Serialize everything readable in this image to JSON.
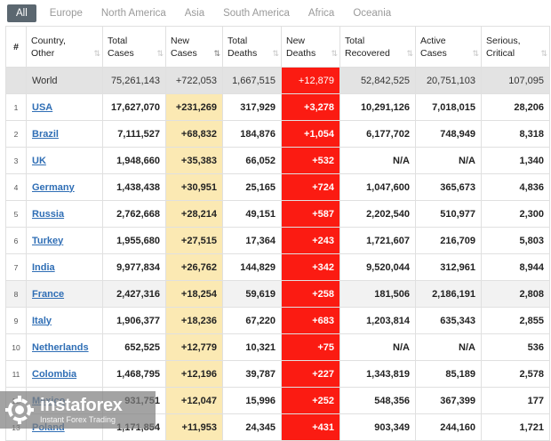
{
  "tabs": [
    {
      "label": "All",
      "active": true
    },
    {
      "label": "Europe"
    },
    {
      "label": "North America"
    },
    {
      "label": "Asia"
    },
    {
      "label": "South America"
    },
    {
      "label": "Africa"
    },
    {
      "label": "Oceania"
    }
  ],
  "columns": [
    {
      "l1": "#",
      "l2": ""
    },
    {
      "l1": "Country,",
      "l2": "Other"
    },
    {
      "l1": "Total",
      "l2": "Cases"
    },
    {
      "l1": "New",
      "l2": "Cases"
    },
    {
      "l1": "Total",
      "l2": "Deaths"
    },
    {
      "l1": "New",
      "l2": "Deaths"
    },
    {
      "l1": "Total",
      "l2": "Recovered"
    },
    {
      "l1": "Active",
      "l2": "Cases"
    },
    {
      "l1": "Serious,",
      "l2": "Critical"
    }
  ],
  "sort_icon": "⇅",
  "world": {
    "country": "World",
    "total_cases": "75,261,143",
    "new_cases": "+722,053",
    "total_deaths": "1,667,515",
    "new_deaths": "+12,879",
    "total_recovered": "52,842,525",
    "active_cases": "20,751,103",
    "serious_critical": "107,095"
  },
  "rows": [
    {
      "num": "1",
      "country": "USA",
      "total_cases": "17,627,070",
      "new_cases": "+231,269",
      "total_deaths": "317,929",
      "new_deaths": "+3,278",
      "total_recovered": "10,291,126",
      "active_cases": "7,018,015",
      "serious_critical": "28,206"
    },
    {
      "num": "2",
      "country": "Brazil",
      "total_cases": "7,111,527",
      "new_cases": "+68,832",
      "total_deaths": "184,876",
      "new_deaths": "+1,054",
      "total_recovered": "6,177,702",
      "active_cases": "748,949",
      "serious_critical": "8,318"
    },
    {
      "num": "3",
      "country": "UK",
      "total_cases": "1,948,660",
      "new_cases": "+35,383",
      "total_deaths": "66,052",
      "new_deaths": "+532",
      "total_recovered": "N/A",
      "active_cases": "N/A",
      "serious_critical": "1,340"
    },
    {
      "num": "4",
      "country": "Germany",
      "total_cases": "1,438,438",
      "new_cases": "+30,951",
      "total_deaths": "25,165",
      "new_deaths": "+724",
      "total_recovered": "1,047,600",
      "active_cases": "365,673",
      "serious_critical": "4,836"
    },
    {
      "num": "5",
      "country": "Russia",
      "total_cases": "2,762,668",
      "new_cases": "+28,214",
      "total_deaths": "49,151",
      "new_deaths": "+587",
      "total_recovered": "2,202,540",
      "active_cases": "510,977",
      "serious_critical": "2,300"
    },
    {
      "num": "6",
      "country": "Turkey",
      "total_cases": "1,955,680",
      "new_cases": "+27,515",
      "total_deaths": "17,364",
      "new_deaths": "+243",
      "total_recovered": "1,721,607",
      "active_cases": "216,709",
      "serious_critical": "5,803"
    },
    {
      "num": "7",
      "country": "India",
      "total_cases": "9,977,834",
      "new_cases": "+26,762",
      "total_deaths": "144,829",
      "new_deaths": "+342",
      "total_recovered": "9,520,044",
      "active_cases": "312,961",
      "serious_critical": "8,944"
    },
    {
      "num": "8",
      "country": "France",
      "total_cases": "2,427,316",
      "new_cases": "+18,254",
      "total_deaths": "59,619",
      "new_deaths": "+258",
      "total_recovered": "181,506",
      "active_cases": "2,186,191",
      "serious_critical": "2,808"
    },
    {
      "num": "9",
      "country": "Italy",
      "total_cases": "1,906,377",
      "new_cases": "+18,236",
      "total_deaths": "67,220",
      "new_deaths": "+683",
      "total_recovered": "1,203,814",
      "active_cases": "635,343",
      "serious_critical": "2,855"
    },
    {
      "num": "10",
      "country": "Netherlands",
      "total_cases": "652,525",
      "new_cases": "+12,779",
      "total_deaths": "10,321",
      "new_deaths": "+75",
      "total_recovered": "N/A",
      "active_cases": "N/A",
      "serious_critical": "536"
    },
    {
      "num": "11",
      "country": "Colombia",
      "total_cases": "1,468,795",
      "new_cases": "+12,196",
      "total_deaths": "39,787",
      "new_deaths": "+227",
      "total_recovered": "1,343,819",
      "active_cases": "85,189",
      "serious_critical": "2,578"
    },
    {
      "num": "12",
      "country": "Mexico",
      "total_cases": "931,751",
      "new_cases": "+12,047",
      "total_deaths": "15,996",
      "new_deaths": "+252",
      "total_recovered": "548,356",
      "active_cases": "367,399",
      "serious_critical": "177"
    },
    {
      "num": "13",
      "country": "Poland",
      "total_cases": "1,171,854",
      "new_cases": "+11,953",
      "total_deaths": "24,345",
      "new_deaths": "+431",
      "total_recovered": "903,349",
      "active_cases": "244,160",
      "serious_critical": "1,721"
    }
  ],
  "watermark": {
    "brand": "instaforex",
    "tagline": "Instant Forex Trading",
    "icon": "instaforex-logo-icon"
  },
  "colors": {
    "new_deaths_bg": "#fb1b12",
    "new_cases_bg": "#fbe9b3",
    "world_row_bg": "#e3e3e3",
    "link": "#2f6eb5",
    "active_tab_bg": "#5b6770"
  }
}
